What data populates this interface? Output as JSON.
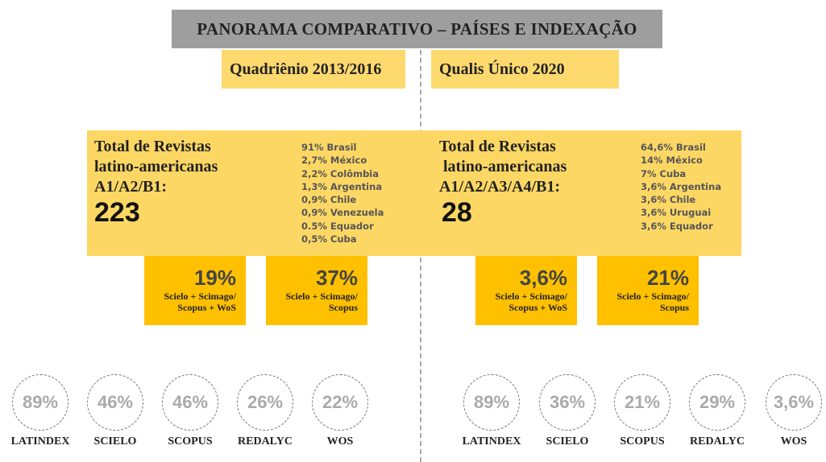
{
  "title": "PANORAMA COMPARATIVO – PAÍSES E INDEXAÇÃO",
  "panels": [
    {
      "period": "Quadriênio 2013/2016",
      "total_label": [
        "Total de Revistas",
        "latino-americanas",
        "A1/A2/B1:"
      ],
      "total": "223",
      "countries": [
        "91% Brasil",
        "2,7% México",
        "2,2% Colômbia",
        "1,3% Argentina",
        "0,9% Chile",
        "0,9% Venezuela",
        "0.5% Equador",
        "0,5% Cuba"
      ],
      "boxes": [
        {
          "value": "19%",
          "label": [
            "Scielo + Scimago/",
            "Scopus + WoS"
          ]
        },
        {
          "value": "37%",
          "label": [
            "Scielo + Scimago/",
            "Scopus"
          ]
        }
      ],
      "indexes": [
        {
          "value": "89%",
          "name": "LATINDEX"
        },
        {
          "value": "46%",
          "name": "SCIELO"
        },
        {
          "value": "46%",
          "name": "SCOPUS"
        },
        {
          "value": "26%",
          "name": "REDALYC"
        },
        {
          "value": "22%",
          "name": "WOS"
        }
      ]
    },
    {
      "period": "Qualis Único 2020",
      "total_label": [
        "Total de Revistas",
        " latino-americanas",
        "A1/A2/A3/A4/B1:"
      ],
      "total": "28",
      "countries": [
        "64,6% Brasil",
        "14% México",
        "7% Cuba",
        "3,6% Argentina",
        "3,6% Chile",
        "3,6% Uruguai",
        "3,6% Equador"
      ],
      "boxes": [
        {
          "value": "3,6%",
          "label": [
            "Scielo + Scimago/",
            "Scopus + WoS"
          ]
        },
        {
          "value": "21%",
          "label": [
            "Scielo + Scimago/",
            "Scopus"
          ]
        }
      ],
      "indexes": [
        {
          "value": "89%",
          "name": "LATINDEX"
        },
        {
          "value": "36%",
          "name": "SCIELO"
        },
        {
          "value": "21%",
          "name": "SCOPUS"
        },
        {
          "value": "29%",
          "name": "REDALYC"
        },
        {
          "value": "3,6%",
          "name": "WOS"
        }
      ]
    }
  ]
}
